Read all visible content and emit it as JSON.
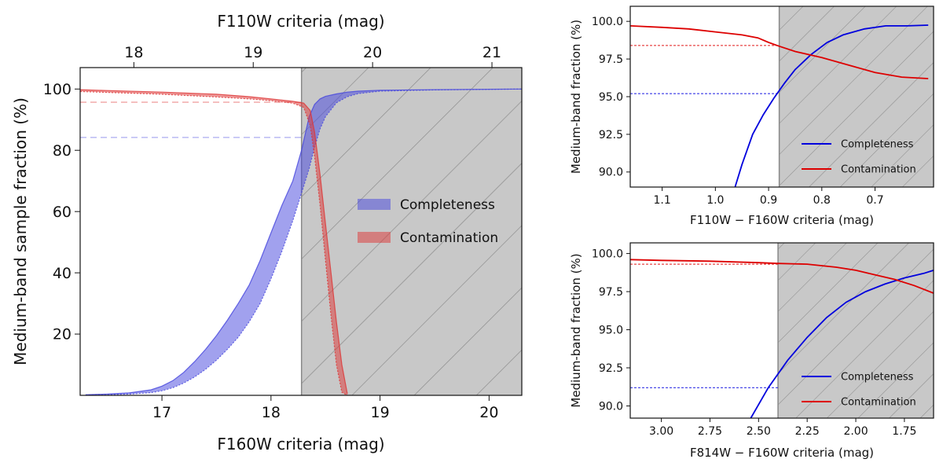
{
  "chart_data": [
    {
      "type": "area",
      "name": "main",
      "xlabel": "F160W criteria (mag)",
      "x2label": "F110W criteria (mag)",
      "ylabel": "Medium-band sample fraction (%)",
      "xlim": [
        16.25,
        20.3
      ],
      "ylim": [
        0,
        107
      ],
      "x2lim": [
        17.55,
        21.25
      ],
      "xticks": [
        17,
        18,
        19,
        20
      ],
      "x2ticks": [
        18,
        19,
        20,
        21
      ],
      "yticks": [
        20,
        40,
        60,
        80,
        100
      ],
      "cut_x": 18.28,
      "legend_position": "center-right",
      "legend": [
        "Completeness",
        "Contamination"
      ],
      "ref_lines": [
        {
          "series": "Contamination",
          "y": 95.7
        },
        {
          "series": "Completeness",
          "y": 84.2
        }
      ],
      "series": [
        {
          "name": "Completeness",
          "color": "#4444dd",
          "x": [
            16.3,
            16.5,
            16.7,
            16.9,
            17.0,
            17.1,
            17.2,
            17.3,
            17.4,
            17.5,
            17.6,
            17.7,
            17.8,
            17.9,
            18.0,
            18.1,
            18.2,
            18.28,
            18.35,
            18.4,
            18.45,
            18.5,
            18.6,
            18.7,
            18.8,
            19.0,
            19.5,
            20.3
          ],
          "upper": [
            0.2,
            0.4,
            0.8,
            1.8,
            3.0,
            4.8,
            7.5,
            11.0,
            15.0,
            19.5,
            24.5,
            30.0,
            36.0,
            44.0,
            53.0,
            62.0,
            70.0,
            80.0,
            91.0,
            95.0,
            96.8,
            97.6,
            98.4,
            99.0,
            99.3,
            99.6,
            99.8,
            100.0
          ],
          "lower": [
            0.1,
            0.2,
            0.4,
            0.9,
            1.5,
            2.5,
            4.0,
            6.0,
            8.5,
            11.5,
            15.0,
            19.0,
            24.0,
            30.0,
            38.0,
            47.0,
            57.0,
            66.0,
            74.0,
            81.0,
            87.0,
            91.0,
            95.5,
            97.5,
            98.5,
            99.3,
            99.7,
            100.0
          ]
        },
        {
          "name": "Contamination",
          "color": "#dd3333",
          "x": [
            16.25,
            16.5,
            17.0,
            17.5,
            17.8,
            18.0,
            18.2,
            18.3,
            18.36,
            18.4,
            18.45,
            18.5,
            18.55,
            18.6,
            18.65,
            18.7
          ],
          "upper": [
            99.8,
            99.5,
            99.0,
            98.3,
            97.5,
            96.8,
            96.0,
            95.4,
            93.0,
            86.0,
            72.0,
            56.0,
            40.0,
            24.0,
            10.0,
            0.5
          ],
          "lower": [
            99.2,
            98.9,
            98.3,
            97.4,
            96.8,
            96.2,
            95.4,
            94.0,
            88.0,
            78.0,
            62.0,
            44.0,
            26.0,
            10.0,
            1.0,
            0.0
          ]
        }
      ]
    },
    {
      "type": "line",
      "name": "top-right",
      "xlabel": "F110W − F160W criteria (mag)",
      "ylabel": "Medium-band fraction (%)",
      "xlim": [
        1.16,
        0.59
      ],
      "ylim": [
        89.0,
        101.0
      ],
      "xticks": [
        1.1,
        1.0,
        0.9,
        0.8,
        0.7
      ],
      "xtick_labels": [
        "1.1",
        "1.0",
        "0.9",
        "0.8",
        "0.7"
      ],
      "yticks": [
        90.0,
        92.5,
        95.0,
        97.5,
        100.0
      ],
      "ytick_labels": [
        "90.0",
        "92.5",
        "95.0",
        "97.5",
        "100.0"
      ],
      "cut_x": 0.88,
      "legend_position": "lower-right",
      "legend": [
        "Completeness",
        "Contamination"
      ],
      "ref_lines": [
        {
          "series": "Contamination",
          "y": 98.4
        },
        {
          "series": "Completeness",
          "y": 95.2
        }
      ],
      "series": [
        {
          "name": "Completeness",
          "color": "#0000dd",
          "x": [
            0.963,
            0.95,
            0.93,
            0.91,
            0.89,
            0.87,
            0.85,
            0.82,
            0.79,
            0.76,
            0.72,
            0.68,
            0.64,
            0.6
          ],
          "y": [
            89.0,
            90.5,
            92.5,
            93.8,
            94.9,
            95.9,
            96.8,
            97.8,
            98.6,
            99.1,
            99.5,
            99.7,
            99.7,
            99.75
          ]
        },
        {
          "name": "Contamination",
          "color": "#dd0000",
          "x": [
            1.16,
            1.1,
            1.05,
            1.0,
            0.95,
            0.92,
            0.9,
            0.88,
            0.85,
            0.8,
            0.75,
            0.7,
            0.65,
            0.6
          ],
          "y": [
            99.7,
            99.6,
            99.5,
            99.3,
            99.1,
            98.9,
            98.6,
            98.35,
            98.0,
            97.6,
            97.1,
            96.6,
            96.3,
            96.2
          ]
        }
      ]
    },
    {
      "type": "line",
      "name": "bottom-right",
      "xlabel": "F814W − F160W criteria (mag)",
      "ylabel": "Medium-band fraction (%)",
      "xlim": [
        3.16,
        1.6
      ],
      "ylim": [
        89.2,
        100.7
      ],
      "xticks": [
        3.0,
        2.75,
        2.5,
        2.25,
        2.0,
        1.75
      ],
      "xtick_labels": [
        "3.00",
        "2.75",
        "2.50",
        "2.25",
        "2.00",
        "1.75"
      ],
      "yticks": [
        90.0,
        92.5,
        95.0,
        97.5,
        100.0
      ],
      "ytick_labels": [
        "90.0",
        "92.5",
        "95.0",
        "97.5",
        "100.0"
      ],
      "cut_x": 2.4,
      "legend_position": "lower-right",
      "legend": [
        "Completeness",
        "Contamination"
      ],
      "ref_lines": [
        {
          "series": "Contamination",
          "y": 99.3
        },
        {
          "series": "Completeness",
          "y": 91.2
        }
      ],
      "series": [
        {
          "name": "Completeness",
          "color": "#0000dd",
          "x": [
            2.54,
            2.45,
            2.35,
            2.25,
            2.15,
            2.05,
            1.95,
            1.85,
            1.75,
            1.65,
            1.6
          ],
          "y": [
            89.2,
            91.2,
            93.0,
            94.5,
            95.8,
            96.8,
            97.5,
            98.0,
            98.4,
            98.7,
            98.9
          ]
        },
        {
          "name": "Contamination",
          "color": "#dd0000",
          "x": [
            3.16,
            3.0,
            2.75,
            2.5,
            2.4,
            2.25,
            2.1,
            2.0,
            1.9,
            1.8,
            1.7,
            1.6
          ],
          "y": [
            99.6,
            99.55,
            99.5,
            99.4,
            99.35,
            99.3,
            99.1,
            98.9,
            98.6,
            98.3,
            97.9,
            97.4
          ]
        }
      ]
    }
  ]
}
